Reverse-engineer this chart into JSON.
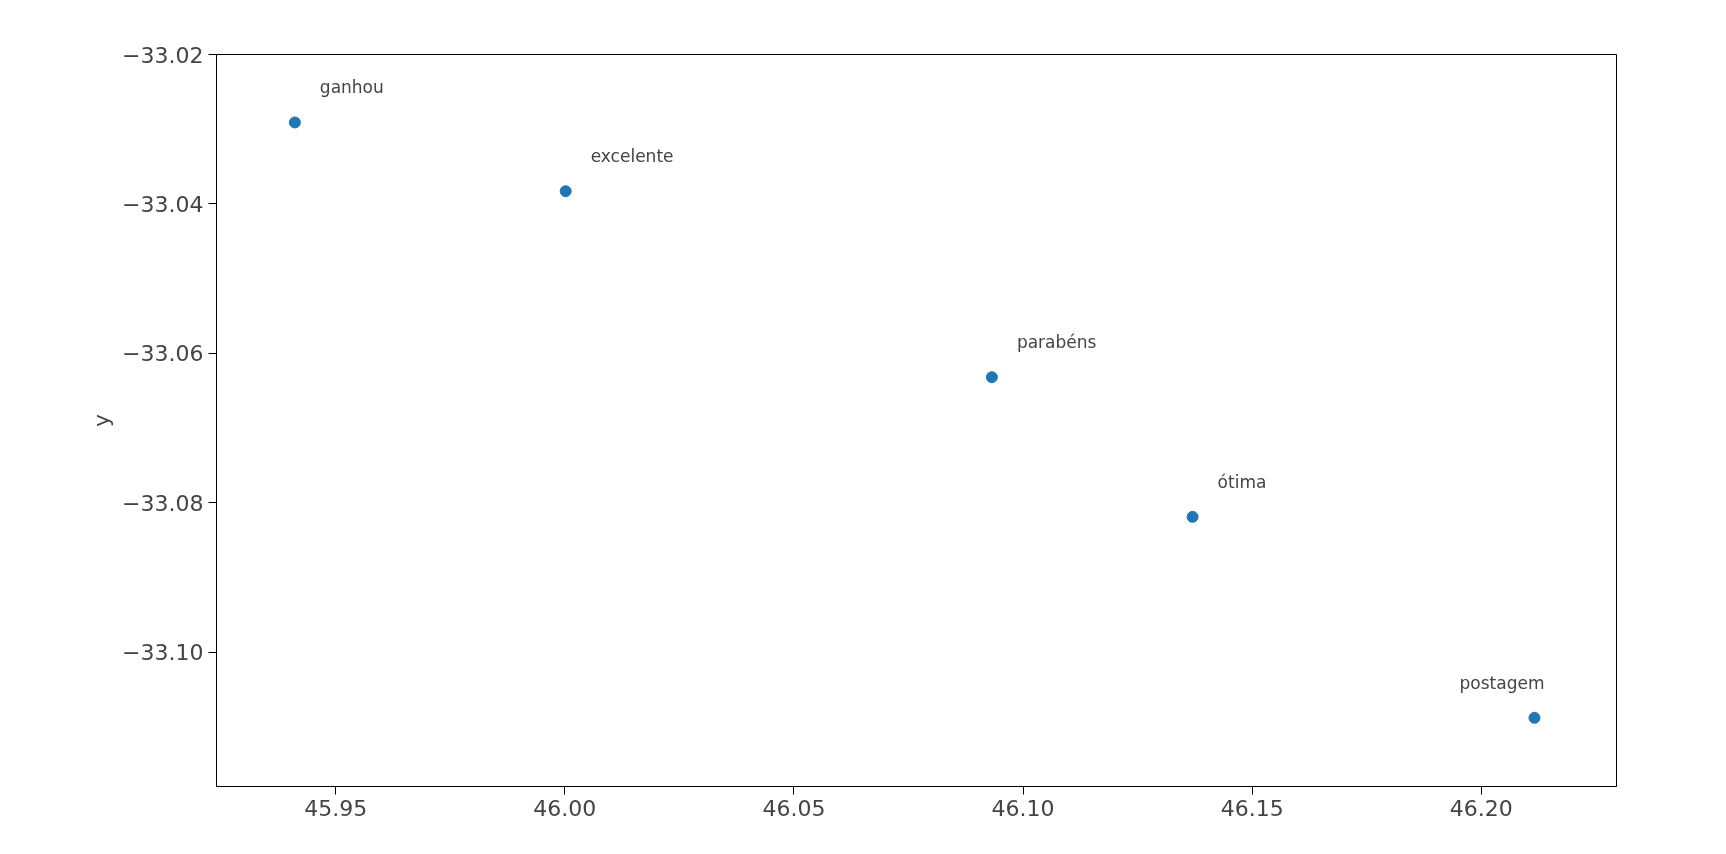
{
  "chart_data": {
    "type": "scatter",
    "ylabel": "y",
    "x": [
      45.9411,
      46.0002,
      46.0932,
      46.137,
      46.2116
    ],
    "series": [
      {
        "color": "#1f77b4",
        "values": [
          -33.0291,
          -33.0383,
          -33.0632,
          -33.0819,
          -33.1088
        ]
      }
    ],
    "annotations": [
      {
        "text": "ganhou",
        "x": 45.9411,
        "y": -33.0291
      },
      {
        "text": "excelente",
        "x": 46.0002,
        "y": -33.0383
      },
      {
        "text": "parabéns",
        "x": 46.0932,
        "y": -33.0632
      },
      {
        "text": "ótima",
        "x": 46.137,
        "y": -33.0819
      },
      {
        "text": "postagem",
        "x": 46.2116,
        "y": -33.1088
      }
    ],
    "xlim": [
      45.924,
      46.2295
    ],
    "ylim": [
      -33.118,
      -33.02
    ],
    "xticks": [
      {
        "value": 45.95,
        "label": "45.95"
      },
      {
        "value": 46.0,
        "label": "46.00"
      },
      46.05,
      {
        "value": 46.1,
        "label": "46.10"
      },
      46.15,
      {
        "value": 46.2,
        "label": "46.20"
      }
    ],
    "yticks": [
      {
        "value": -33.02,
        "label": "−33.02"
      },
      {
        "value": -33.04,
        "label": "−33.04"
      },
      {
        "value": -33.06,
        "label": "−33.06"
      },
      {
        "value": -33.08,
        "label": "−33.08"
      },
      {
        "value": -33.1,
        "label": "−33.10"
      }
    ],
    "grid": false,
    "marker": "circle"
  }
}
